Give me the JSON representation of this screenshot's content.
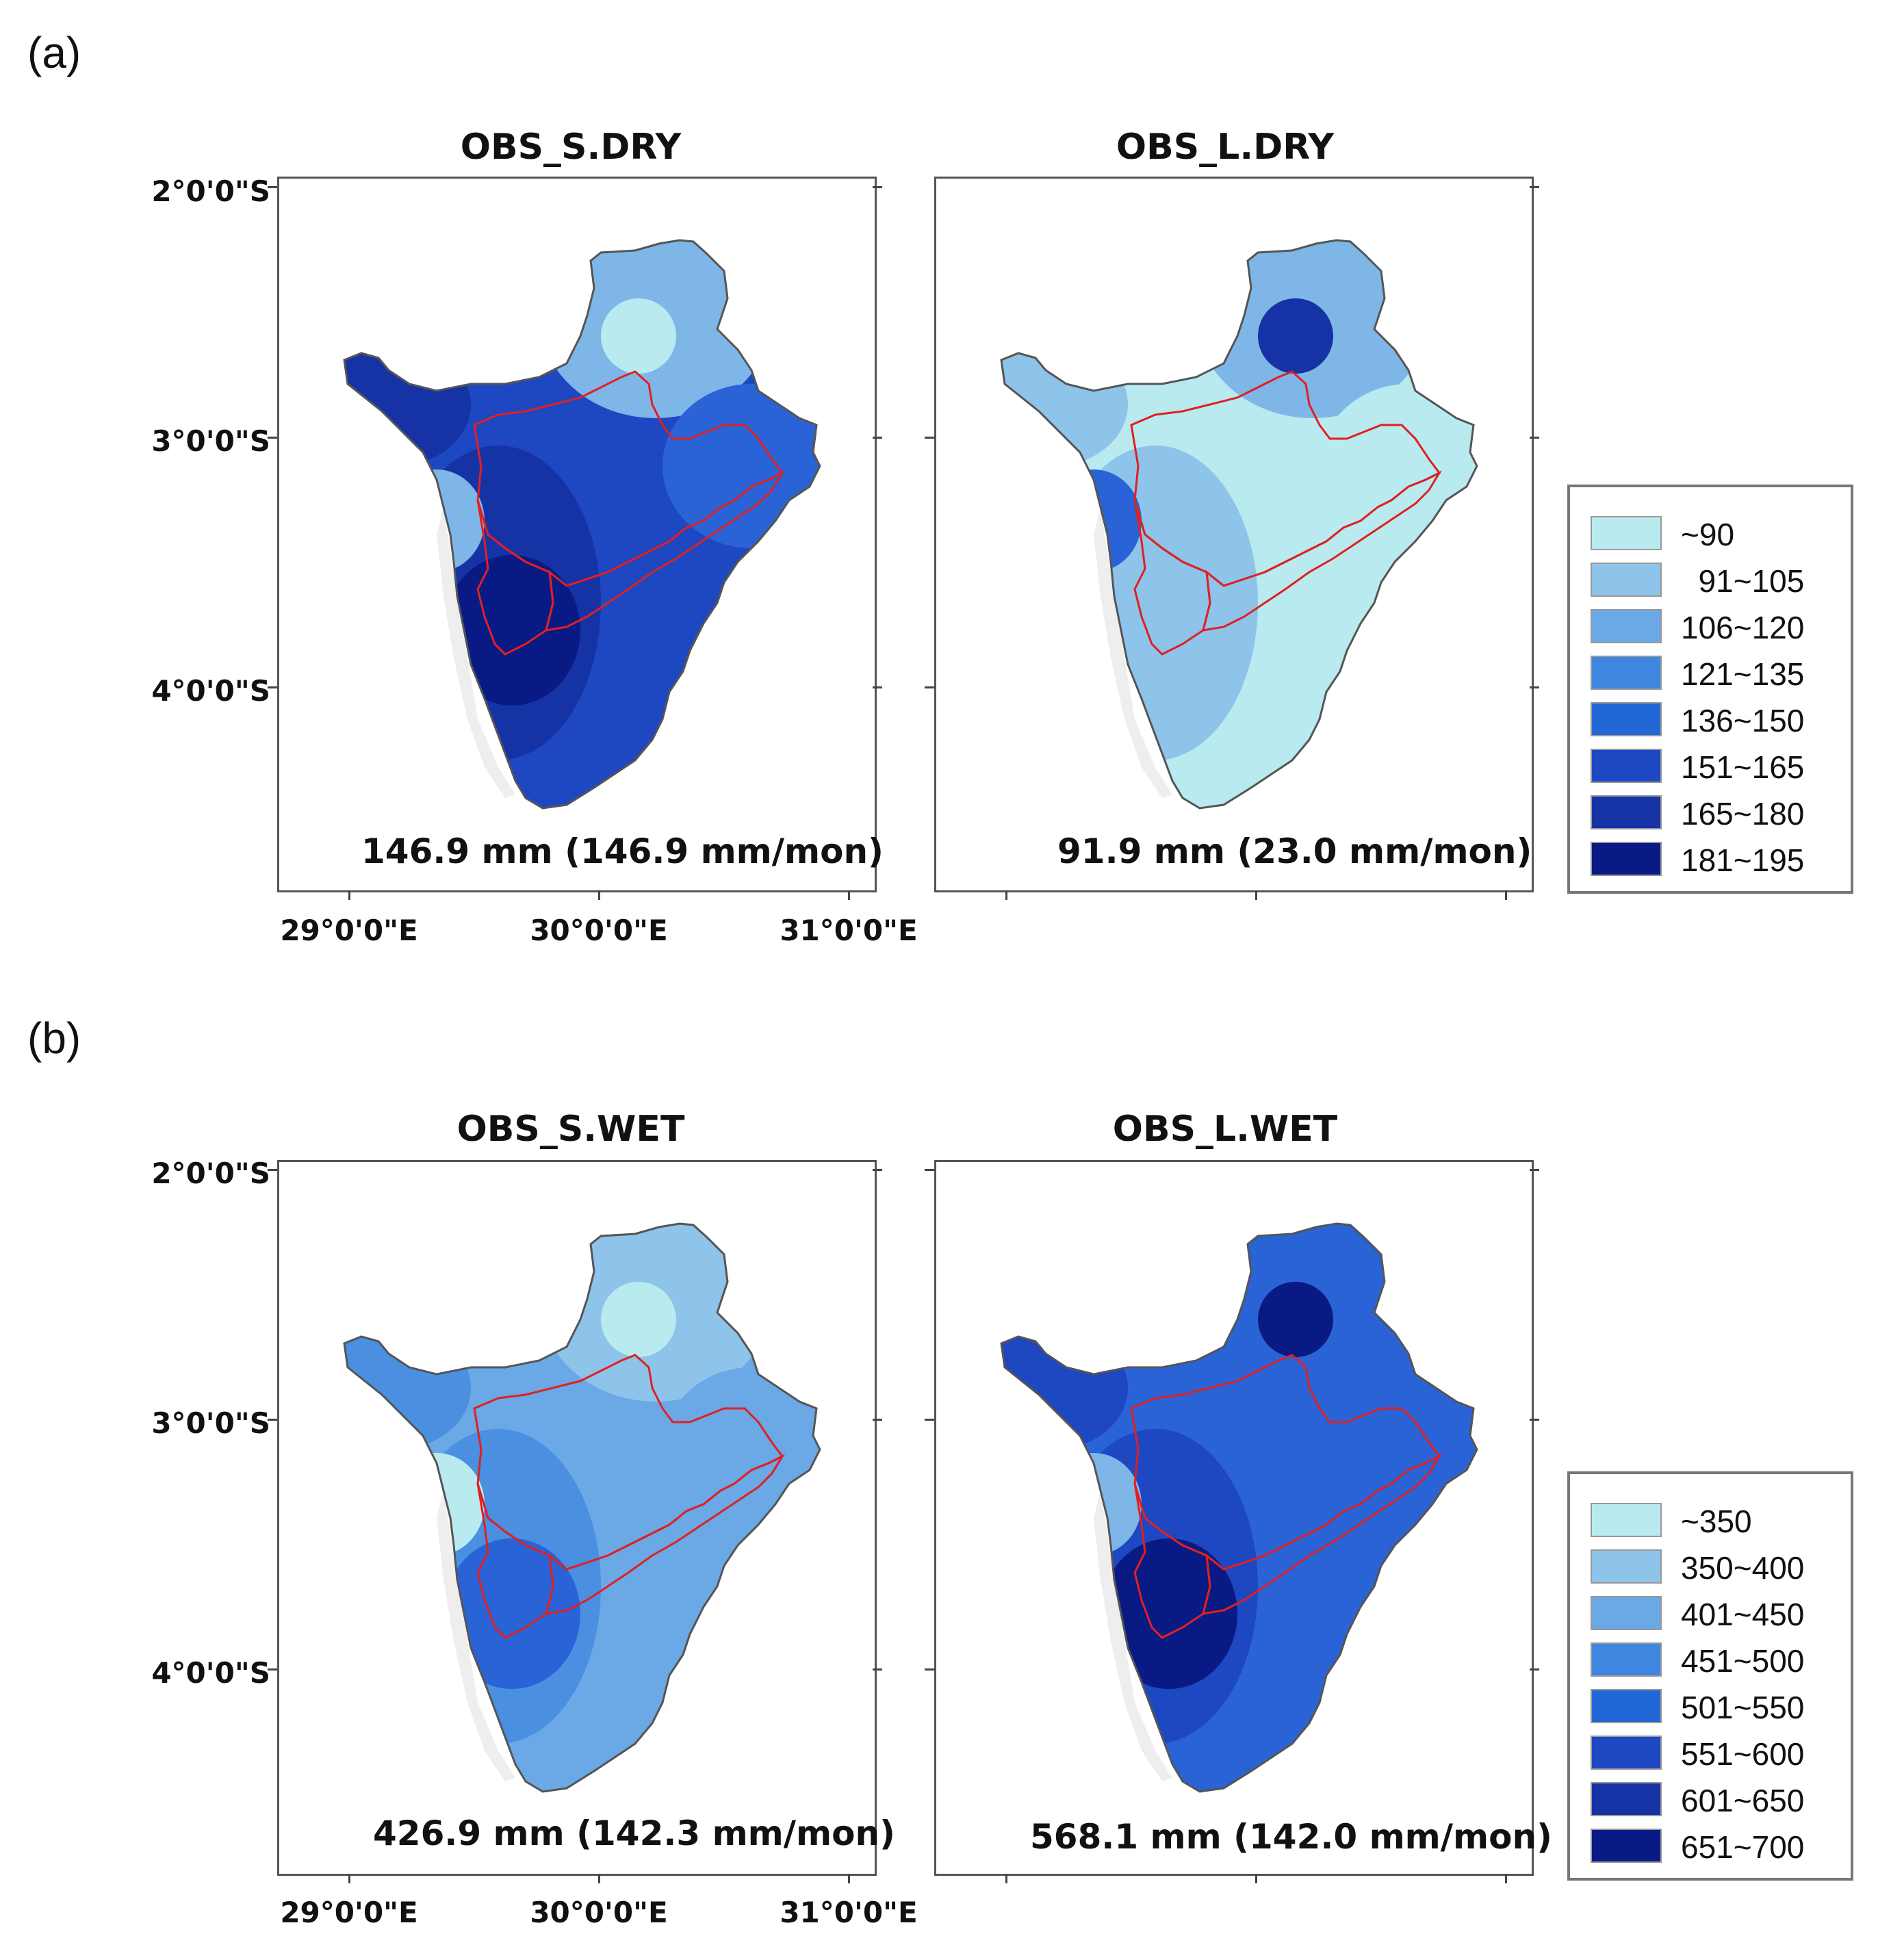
{
  "panels": {
    "a_label": "(a)",
    "b_label": "(b)"
  },
  "axes": {
    "lat_ticks": [
      "2°0'0\"S",
      "3°0'0\"S",
      "4°0'0\"S"
    ],
    "lon_ticks": [
      "29°0'0\"E",
      "30°0'0\"E",
      "31°0'0\"E"
    ]
  },
  "maps": [
    {
      "title": "OBS_S.DRY",
      "summary": "146.9 mm (146.9 mm/mon)",
      "colors": {
        "base": "#1e47c2",
        "west": "#1633a6",
        "sw_core": "#0a1a85",
        "north": "#7fb6e8",
        "north_spot": "#b9eaf0",
        "west_spot": "#7fb6e8",
        "east": "#2a63d6"
      }
    },
    {
      "title": "OBS_L.DRY",
      "summary": "91.9 mm (23.0 mm/mon)",
      "colors": {
        "base": "#b9eaf0",
        "west": "#8ec3ea",
        "sw_core": "#8ec3ea",
        "north": "#7fb6e8",
        "north_spot": "#1633a6",
        "west_spot": "#2a63d6",
        "east": "#b9eaf0"
      }
    },
    {
      "title": "OBS_S.WET",
      "summary": "426.9 mm (142.3 mm/mon)",
      "colors": {
        "base": "#6aa8e6",
        "west": "#4a8fe0",
        "sw_core": "#2a63d6",
        "north": "#8ec3ea",
        "north_spot": "#b9eaf0",
        "west_spot": "#b9eaf0",
        "east": "#6aa8e6"
      }
    },
    {
      "title": "OBS_L.WET",
      "summary": "568.1 mm (142.0 mm/mon)",
      "colors": {
        "base": "#2a63d6",
        "west": "#1e47c2",
        "sw_core": "#0a1a85",
        "north": "#2a63d6",
        "north_spot": "#0a1a85",
        "west_spot": "#7fb6e8",
        "east": "#2a63d6"
      }
    }
  ],
  "legend_a": {
    "items": [
      {
        "label": "~90",
        "color": "#b9eaf0"
      },
      {
        "label": "  91~105",
        "color": "#8ec3ea"
      },
      {
        "label": "106~120",
        "color": "#6aa8e6"
      },
      {
        "label": "121~135",
        "color": "#3f86e0"
      },
      {
        "label": "136~150",
        "color": "#2168d6"
      },
      {
        "label": "151~165",
        "color": "#1e47c2"
      },
      {
        "label": "165~180",
        "color": "#1633a6"
      },
      {
        "label": "181~195",
        "color": "#0a1a85"
      }
    ]
  },
  "legend_b": {
    "items": [
      {
        "label": "~350",
        "color": "#b9eaf0"
      },
      {
        "label": "350~400",
        "color": "#8ec3ea"
      },
      {
        "label": "401~450",
        "color": "#6aa8e6"
      },
      {
        "label": "451~500",
        "color": "#3f86e0"
      },
      {
        "label": "501~550",
        "color": "#2168d6"
      },
      {
        "label": "551~600",
        "color": "#1e47c2"
      },
      {
        "label": "601~650",
        "color": "#1633a6"
      },
      {
        "label": "651~700",
        "color": "#0a1a85"
      }
    ]
  }
}
